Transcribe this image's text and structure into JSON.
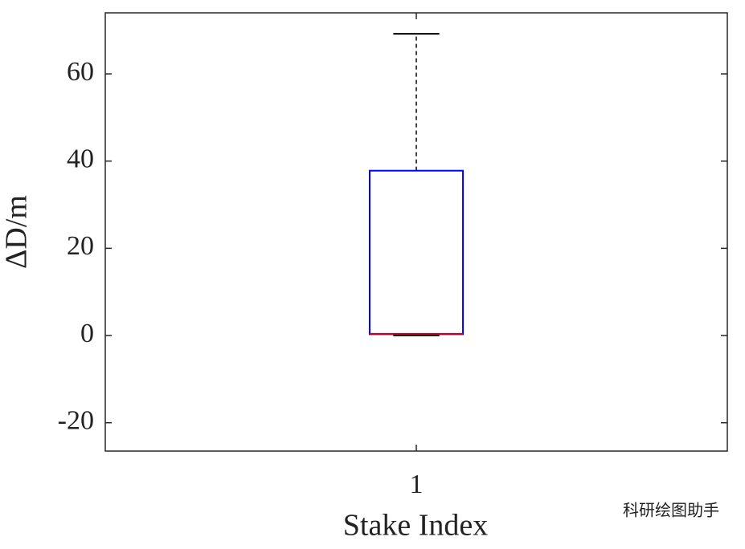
{
  "chart_data": {
    "type": "box",
    "xlabel": "Stake Index",
    "ylabel": "ΔD/m",
    "categories": [
      "1"
    ],
    "boxes": [
      {
        "min": 0,
        "q1": 0.3,
        "median": 0.4,
        "q3": 37.8,
        "max": 69.2
      }
    ],
    "box_color": "#0000ff",
    "median_color": "#d0001a",
    "whisker_color": "#000000",
    "ylim": [
      -26.5,
      74
    ],
    "yticks": [
      -20,
      0,
      20,
      40,
      60
    ],
    "grid": false,
    "watermark": "科研绘图助手"
  }
}
